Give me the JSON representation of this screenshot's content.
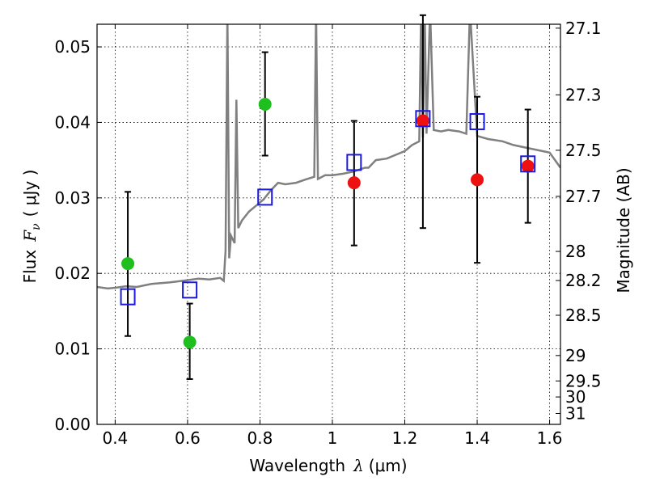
{
  "chart_data": {
    "type": "scatter",
    "title": "",
    "xlabel_prefix": "Wavelength",
    "xlabel_symbol": "λ",
    "xlabel_unit": "(μm)",
    "ylabel_prefix": "Flux",
    "ylabel_symbol": "F",
    "ylabel_sub": "ν",
    "ylabel_unit": "( μJy )",
    "y2label": "Magnitude (AB)",
    "xlim": [
      0.35,
      1.63
    ],
    "ylim": [
      0.0,
      0.053
    ],
    "grid": true,
    "x_ticks": [
      0.4,
      0.6,
      0.8,
      1.0,
      1.2,
      1.4,
      1.6
    ],
    "x_tick_labels": [
      "0.4",
      "0.6",
      "0.8",
      "1",
      "1.2",
      "1.4",
      "1.6"
    ],
    "y_ticks": [
      0.0,
      0.01,
      0.02,
      0.03,
      0.04,
      0.05
    ],
    "y_tick_labels": [
      "0.00",
      "0.01",
      "0.02",
      "0.03",
      "0.04",
      "0.05"
    ],
    "y2_ticks": [
      27.1,
      27.3,
      27.5,
      27.7,
      28,
      28.2,
      28.5,
      29,
      29.5,
      30,
      31
    ],
    "y2_tick_labels": [
      "27.1",
      "27.3",
      "27.5",
      "27.7",
      "28",
      "28.2",
      "28.5",
      "29",
      "29.5",
      "30",
      "31"
    ],
    "colors": {
      "model": "#808080",
      "observed_optical": "#1fbf1f",
      "observed_nir": "#ee1111",
      "model_photometry": "#1a1adf",
      "errorbar": "#000000"
    },
    "series": [
      {
        "marker": "green-circle",
        "x": [
          0.435,
          0.606,
          0.814
        ],
        "y": [
          0.0213,
          0.0109,
          0.0424
        ],
        "yerr": [
          [
            0.0096,
            0.0095
          ],
          [
            0.0049,
            0.0051
          ],
          [
            0.0068,
            0.0069
          ]
        ]
      },
      {
        "marker": "red-circle",
        "x": [
          1.06,
          1.25,
          1.4,
          1.54
        ],
        "y": [
          0.032,
          0.0402,
          0.0324,
          0.0342
        ],
        "yerr": [
          [
            0.0083,
            0.0082
          ],
          [
            0.0142,
            0.014
          ],
          [
            0.011,
            0.011
          ],
          [
            0.0075,
            0.0075
          ]
        ]
      },
      {
        "marker": "blue-open-square",
        "x": [
          0.435,
          0.606,
          0.814,
          1.06,
          1.25,
          1.4,
          1.54
        ],
        "y": [
          0.0169,
          0.0178,
          0.0301,
          0.0347,
          0.0405,
          0.0401,
          0.0345
        ]
      },
      {
        "marker": "gray-line",
        "x": [
          0.35,
          0.38,
          0.4,
          0.43,
          0.46,
          0.5,
          0.55,
          0.6,
          0.63,
          0.66,
          0.69,
          0.7,
          0.705,
          0.71,
          0.715,
          0.72,
          0.73,
          0.735,
          0.74,
          0.75,
          0.77,
          0.79,
          0.81,
          0.83,
          0.85,
          0.87,
          0.9,
          0.93,
          0.95,
          0.955,
          0.96,
          0.98,
          1.0,
          1.03,
          1.06,
          1.09,
          1.1,
          1.12,
          1.15,
          1.18,
          1.2,
          1.22,
          1.24,
          1.245,
          1.25,
          1.255,
          1.26,
          1.27,
          1.28,
          1.3,
          1.32,
          1.35,
          1.37,
          1.38,
          1.4,
          1.43,
          1.47,
          1.5,
          1.55,
          1.58,
          1.6,
          1.63
        ],
        "y": [
          0.0182,
          0.018,
          0.0181,
          0.0183,
          0.0182,
          0.0186,
          0.0188,
          0.0191,
          0.0193,
          0.0192,
          0.0194,
          0.019,
          0.023,
          0.055,
          0.022,
          0.025,
          0.024,
          0.043,
          0.026,
          0.027,
          0.0282,
          0.029,
          0.0298,
          0.031,
          0.032,
          0.0318,
          0.032,
          0.0325,
          0.0328,
          0.055,
          0.0325,
          0.033,
          0.033,
          0.0332,
          0.0335,
          0.034,
          0.034,
          0.035,
          0.0352,
          0.0358,
          0.0362,
          0.037,
          0.0375,
          0.055,
          0.038,
          0.055,
          0.0385,
          0.055,
          0.039,
          0.0388,
          0.039,
          0.0388,
          0.0385,
          0.055,
          0.0382,
          0.0378,
          0.0375,
          0.037,
          0.0365,
          0.0362,
          0.036,
          0.034
        ]
      }
    ]
  }
}
